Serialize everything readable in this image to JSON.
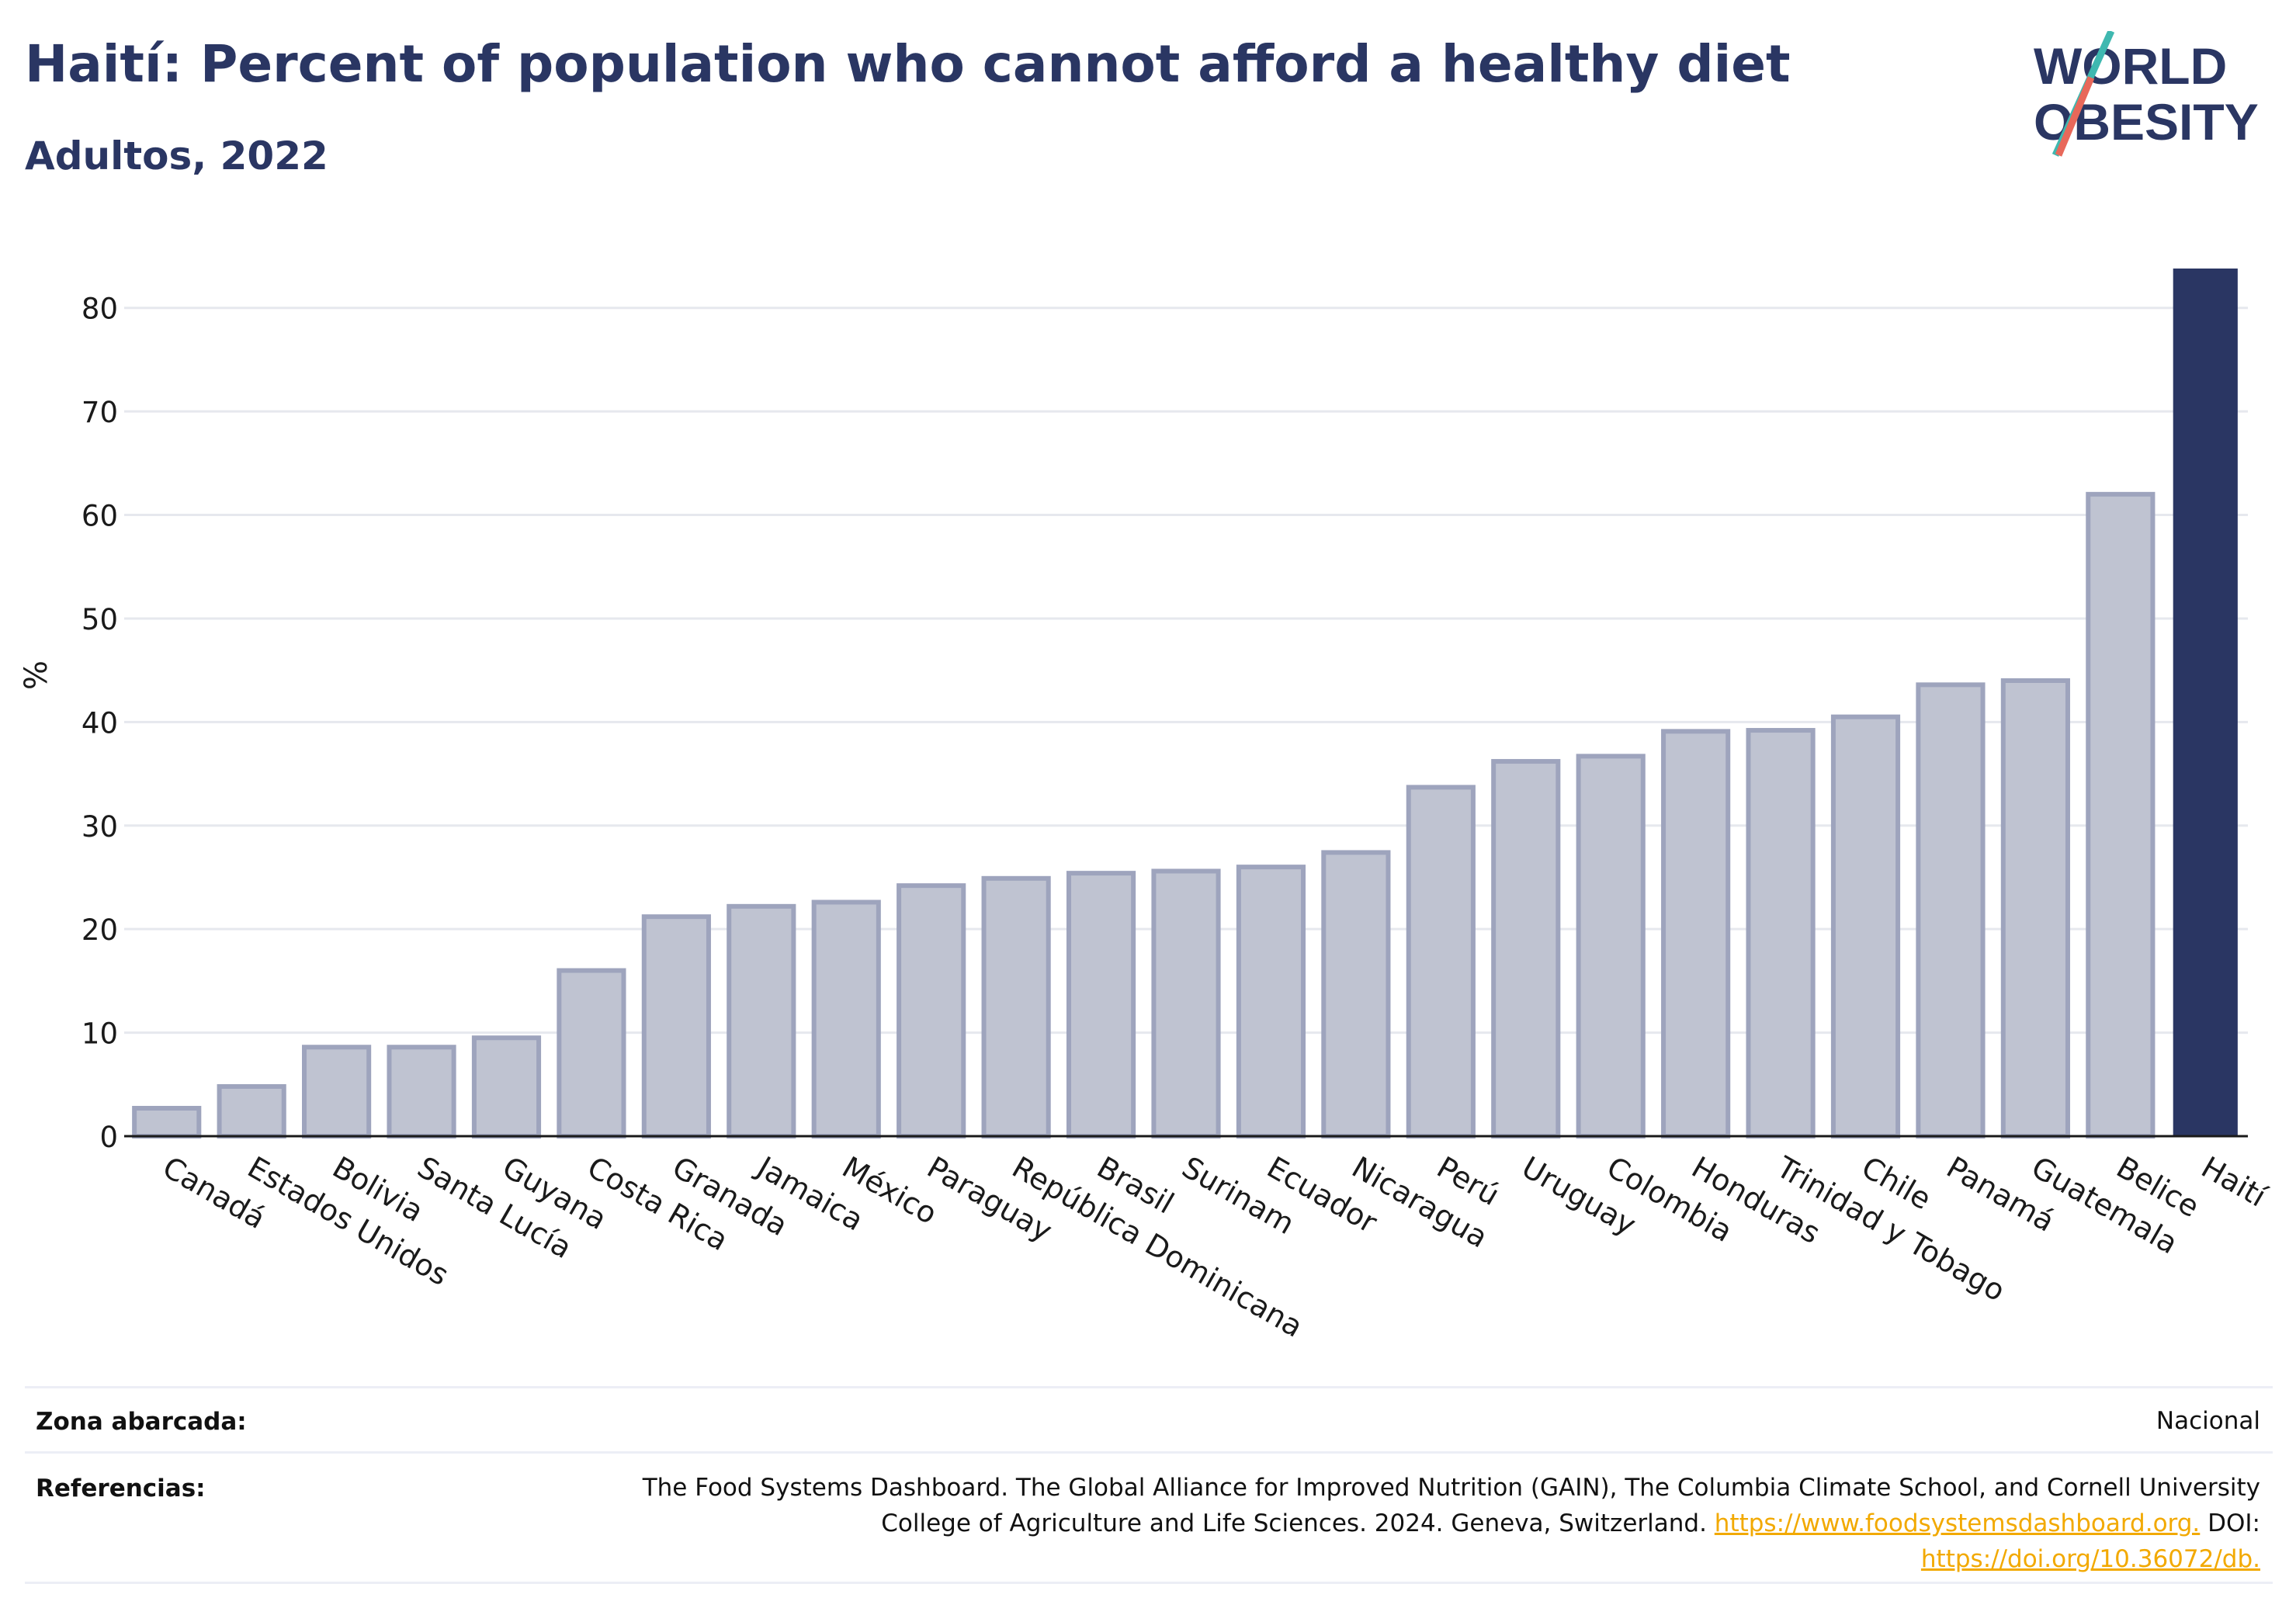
{
  "header": {
    "title": "Haití: Percent of population who cannot afford a healthy diet",
    "subtitle": "Adultos, 2022"
  },
  "logo": {
    "line1": "WORLD",
    "line2": "OBESITY",
    "colors": {
      "text": "#2a3663",
      "slash_top": "#3fb8b0",
      "slash_bottom": "#e8685a"
    }
  },
  "colors": {
    "bar_fill": "#bfc3d1",
    "bar_stroke": "#9ea4bd",
    "highlight": "#2a3663",
    "grid": "#e6e8ee",
    "axis_text": "#1a1a1a"
  },
  "chart_data": {
    "type": "bar",
    "title": "Haití: Percent of population who cannot afford a healthy diet",
    "subtitle": "Adultos, 2022",
    "ylabel": "%",
    "xlabel": "",
    "ylim": [
      0,
      85
    ],
    "yticks": [
      0,
      10,
      20,
      30,
      40,
      50,
      60,
      70,
      80
    ],
    "grid": true,
    "highlight": "Haití",
    "categories": [
      "Canadá",
      "Estados Unidos",
      "Bolivia",
      "Santa Lucía",
      "Guyana",
      "Costa Rica",
      "Granada",
      "Jamaica",
      "México",
      "Paraguay",
      "República Dominicana",
      "Brasil",
      "Surinam",
      "Ecuador",
      "Nicaragua",
      "Perú",
      "Uruguay",
      "Colombia",
      "Honduras",
      "Trinidad y Tobago",
      "Chile",
      "Panamá",
      "Guatemala",
      "Belice",
      "Haití"
    ],
    "values": [
      2.7,
      4.8,
      8.6,
      8.6,
      9.5,
      16.0,
      21.2,
      22.2,
      22.6,
      24.2,
      24.9,
      25.4,
      25.6,
      26.0,
      27.4,
      33.7,
      36.2,
      36.7,
      39.1,
      39.2,
      40.5,
      43.6,
      44.0,
      62.0,
      83.8
    ]
  },
  "footer": {
    "coverage_label": "Zona abarcada:",
    "coverage_value": "Nacional",
    "refs_label": "Referencias:",
    "refs_line1": "The Food Systems Dashboard. The Global Alliance for Improved Nutrition (GAIN), The Columbia Climate School, and Cornell University",
    "refs_line2_text": "College of Agriculture and Life Sciences. 2024. Geneva, Switzerland.",
    "refs_link1": "https://www.foodsystemsdashboard.org.",
    "refs_doi": "DOI:",
    "refs_link2": "https://doi.org/10.36072/db."
  }
}
